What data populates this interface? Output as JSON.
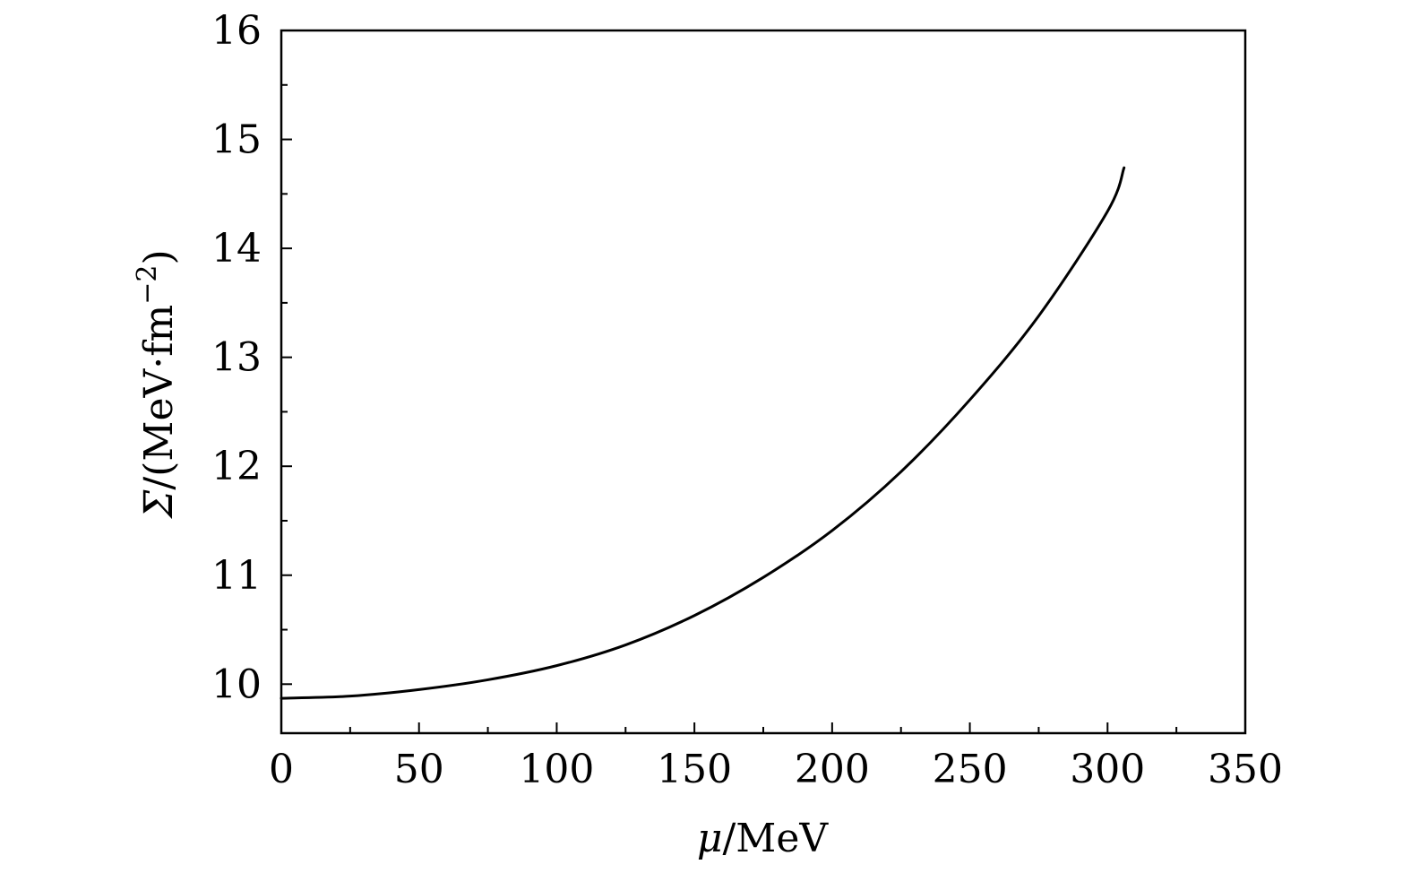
{
  "chart_data": {
    "type": "line",
    "title": "",
    "xlabel": {
      "symbol": "μ",
      "rest": "/MeV"
    },
    "ylabel": {
      "symbol": "Σ",
      "rest": "/(MeV·fm",
      "sup": "−2",
      "close": ")"
    },
    "xlim": [
      0,
      350
    ],
    "ylim": [
      9.55,
      16
    ],
    "x_ticks": [
      0,
      50,
      100,
      150,
      200,
      250,
      300,
      350
    ],
    "x_tick_labels": [
      "0",
      "50",
      "100",
      "150",
      "200",
      "250",
      "300",
      "350"
    ],
    "x_minor_ticks": [
      25,
      75,
      125,
      175,
      225,
      275,
      325
    ],
    "y_ticks": [
      10,
      11,
      12,
      13,
      14,
      15,
      16
    ],
    "y_tick_labels": [
      "10",
      "11",
      "12",
      "13",
      "14",
      "15",
      "16"
    ],
    "y_minor_ticks": [
      10.5,
      11.5,
      12.5,
      13.5,
      14.5,
      15.5
    ],
    "grid": false,
    "series": [
      {
        "color": "#000000",
        "x": [
          0,
          25,
          50,
          75,
          100,
          125,
          150,
          175,
          200,
          225,
          250,
          275,
          300,
          306
        ],
        "y": [
          9.87,
          9.89,
          9.95,
          10.04,
          10.17,
          10.36,
          10.63,
          10.98,
          11.41,
          11.95,
          12.61,
          13.38,
          14.34,
          14.74
        ]
      }
    ]
  }
}
